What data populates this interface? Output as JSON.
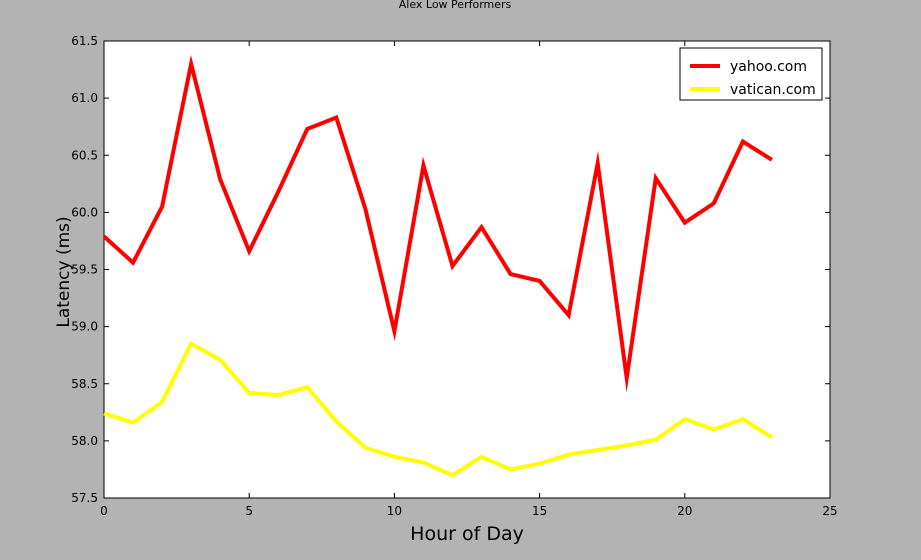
{
  "chart_data": {
    "type": "line",
    "title": "Alex Low Performers",
    "xlabel": "Hour of Day",
    "ylabel": "Latency (ms)",
    "xlim": [
      0,
      25
    ],
    "ylim": [
      57.5,
      61.5
    ],
    "x_ticks": [
      "0",
      "5",
      "10",
      "15",
      "20",
      "25"
    ],
    "y_ticks": [
      "57.5",
      "58.0",
      "58.5",
      "59.0",
      "59.5",
      "60.0",
      "60.5",
      "61.0",
      "61.5"
    ],
    "grid": false,
    "legend_position": "top-right",
    "x": [
      0,
      1,
      2,
      3,
      4,
      5,
      6,
      7,
      8,
      9,
      10,
      11,
      12,
      13,
      14,
      15,
      16,
      17,
      18,
      19,
      20,
      21,
      22,
      23
    ],
    "series": [
      {
        "name": "yahoo.com",
        "color": "#ff0000",
        "values": [
          59.79,
          59.56,
          60.05,
          61.3,
          60.29,
          59.66,
          60.18,
          60.73,
          60.83,
          60.03,
          58.96,
          60.41,
          59.53,
          59.87,
          59.46,
          59.4,
          59.1,
          60.43,
          58.55,
          60.3,
          59.91,
          60.08,
          60.62,
          60.46
        ]
      },
      {
        "name": "vatican.com",
        "color": "#ffff00",
        "values": [
          58.24,
          58.16,
          58.34,
          58.85,
          58.71,
          58.42,
          58.4,
          58.47,
          58.17,
          57.94,
          57.86,
          57.81,
          57.7,
          57.86,
          57.75,
          57.8,
          57.88,
          57.92,
          57.96,
          58.01,
          58.19,
          58.1,
          58.19,
          58.03
        ]
      }
    ]
  }
}
